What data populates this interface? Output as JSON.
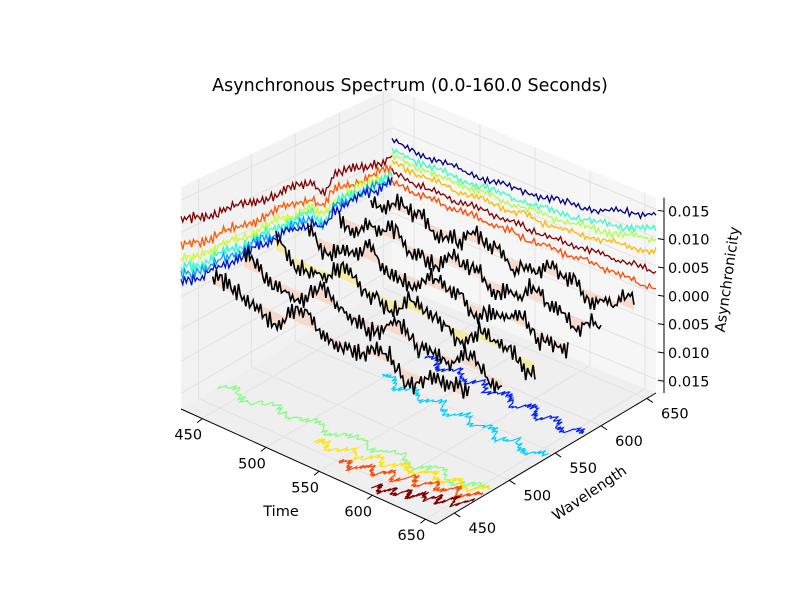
{
  "chart_data": {
    "type": "line",
    "projection": "3d",
    "title": "Asynchronous Spectrum (0.0-160.0 Seconds)",
    "xlabel": "Time",
    "ylabel": "Wavelength",
    "zlabel": "Asynchronicity",
    "xlim": [
      430,
      670
    ],
    "ylim": [
      430,
      670
    ],
    "zlim": [
      -0.017,
      0.018
    ],
    "xticks": [
      "450",
      "500",
      "550",
      "600",
      "650"
    ],
    "yticks": [
      "450",
      "500",
      "550",
      "600",
      "650"
    ],
    "zticks": [
      "0.015",
      "0.010",
      "0.005",
      "0.000",
      "0.005",
      "0.010",
      "0.015"
    ],
    "grid": true,
    "colormap": "jet",
    "back_wall_lines": [
      {
        "offset": 0.0125,
        "color": "#7f0000"
      },
      {
        "offset": 0.0085,
        "color": "#ff5a00"
      },
      {
        "offset": 0.0062,
        "color": "#c8ff2a"
      },
      {
        "offset": 0.0048,
        "color": "#2affcc"
      },
      {
        "offset": 0.0036,
        "color": "#00a2ff"
      },
      {
        "offset": 0.0026,
        "color": "#0010c0"
      }
    ],
    "right_wall_lines": [
      {
        "offset": 0.0152,
        "color": "#00007f"
      },
      {
        "offset": 0.0122,
        "color": "#38ffc0"
      },
      {
        "offset": 0.0104,
        "color": "#b0ff48"
      },
      {
        "offset": 0.0082,
        "color": "#ffb800"
      },
      {
        "offset": 0.0048,
        "color": "#7f0000"
      },
      {
        "offset": 0.0018,
        "color": "#ff4800"
      }
    ],
    "floor_contours": [
      {
        "level": -0.012,
        "color": "#0020ff"
      },
      {
        "level": -0.008,
        "color": "#00d0ff"
      },
      {
        "level": 0.0,
        "color": "#7dff7a"
      },
      {
        "level": 0.006,
        "color": "#ffe600"
      },
      {
        "level": 0.01,
        "color": "#ff4a00"
      },
      {
        "level": 0.014,
        "color": "#7f0000"
      }
    ],
    "surface_slices": 6
  }
}
